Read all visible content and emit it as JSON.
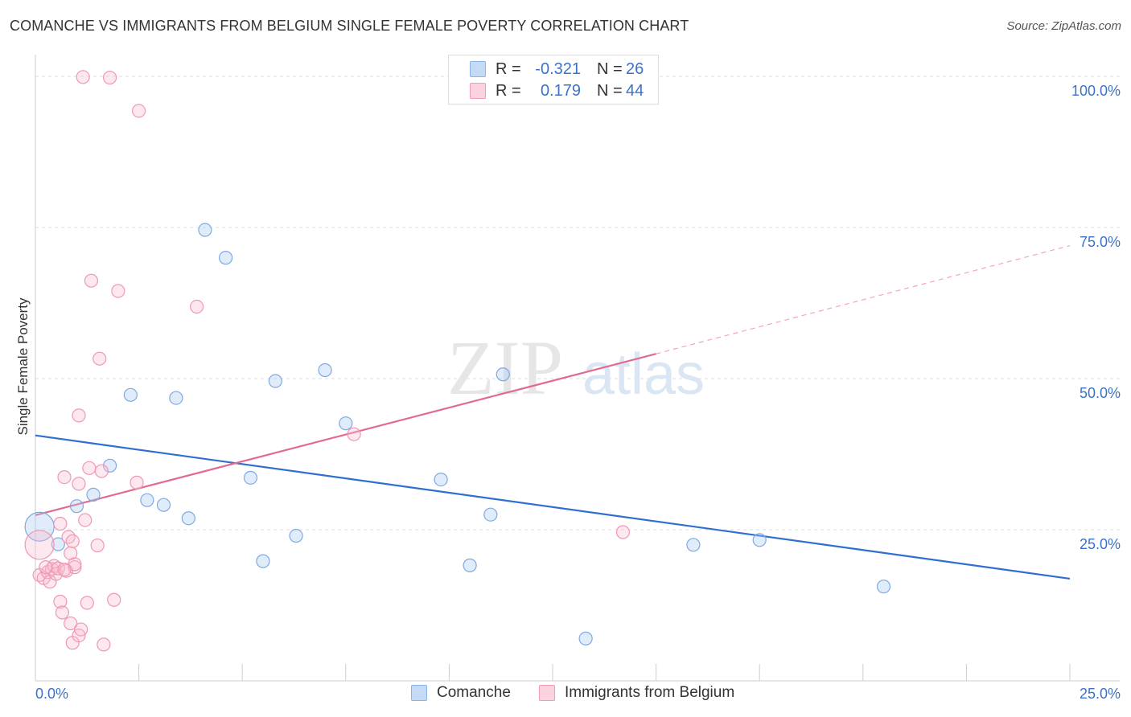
{
  "title": "COMANCHE VS IMMIGRANTS FROM BELGIUM SINGLE FEMALE POVERTY CORRELATION CHART",
  "source": "Source: ZipAtlas.com",
  "watermark": {
    "zip": "ZIP",
    "atlas": "atlas"
  },
  "legend_stats": [
    {
      "r_label": "R =",
      "r_value": "-0.321",
      "n_label": "N =",
      "n_value": "26",
      "color": "#8ab4e8",
      "fill": "#c5daf5"
    },
    {
      "r_label": "R =",
      "r_value": "0.179",
      "n_label": "N =",
      "n_value": "44",
      "color": "#f09cb6",
      "fill": "#fbd3df"
    }
  ],
  "colors": {
    "comanche_stroke": "#7fa9df",
    "comanche_fill": "rgba(170,200,240,0.35)",
    "comanche_line": "#2f6fcf",
    "belgium_stroke": "#ee98b2",
    "belgium_fill": "rgba(248,190,208,0.35)",
    "belgium_line": "#e26a93",
    "grid": "#dddddd",
    "axis_text": "#3b72c9"
  },
  "chart_data": {
    "type": "scatter",
    "title": "COMANCHE VS IMMIGRANTS FROM BELGIUM SINGLE FEMALE POVERTY CORRELATION CHART",
    "xlabel": "",
    "ylabel": "Single Female Poverty",
    "xlim": [
      0,
      25
    ],
    "ylim": [
      0,
      102
    ],
    "x_tick_labels": [
      {
        "value": 0,
        "label": "0.0%"
      },
      {
        "value": 25,
        "label": "25.0%"
      }
    ],
    "y_tick_labels": [
      {
        "value": 25,
        "label": "25.0%"
      },
      {
        "value": 50,
        "label": "50.0%"
      },
      {
        "value": 75,
        "label": "75.0%"
      },
      {
        "value": 100,
        "label": "100.0%"
      }
    ],
    "grid": true,
    "legend": [
      "Comanche",
      "Immigrants from Belgium"
    ],
    "series": [
      {
        "name": "Comanche",
        "points": [
          [
            0.1,
            25.5,
            "large"
          ],
          [
            1.0,
            28.9
          ],
          [
            1.4,
            30.8
          ],
          [
            1.8,
            35.6
          ],
          [
            2.3,
            47.3
          ],
          [
            2.7,
            29.9
          ],
          [
            3.1,
            29.1
          ],
          [
            3.4,
            46.8
          ],
          [
            3.7,
            26.9
          ],
          [
            4.1,
            74.6
          ],
          [
            4.6,
            70.0
          ],
          [
            5.2,
            33.6
          ],
          [
            5.5,
            19.8
          ],
          [
            5.8,
            49.6
          ],
          [
            6.3,
            24.0
          ],
          [
            7.0,
            51.4
          ],
          [
            7.5,
            42.6
          ],
          [
            9.8,
            33.3
          ],
          [
            10.5,
            19.1
          ],
          [
            11.0,
            27.5
          ],
          [
            11.3,
            50.7
          ],
          [
            13.3,
            7.0
          ],
          [
            15.9,
            22.5
          ],
          [
            17.5,
            23.3
          ],
          [
            20.5,
            15.6
          ],
          [
            0.55,
            22.6
          ]
        ],
        "trend": {
          "x": [
            0,
            25
          ],
          "y": [
            40.6,
            16.9
          ]
        }
      },
      {
        "name": "Immigrants from Belgium",
        "points": [
          [
            0.1,
            22.5,
            "large"
          ],
          [
            0.1,
            17.5
          ],
          [
            0.2,
            17.0
          ],
          [
            0.3,
            18.0
          ],
          [
            0.35,
            16.4
          ],
          [
            0.4,
            18.5
          ],
          [
            0.45,
            19.0
          ],
          [
            0.5,
            17.7
          ],
          [
            0.55,
            18.6
          ],
          [
            0.6,
            26.0
          ],
          [
            0.6,
            13.1
          ],
          [
            0.65,
            11.3
          ],
          [
            0.7,
            33.7
          ],
          [
            0.75,
            18.2
          ],
          [
            0.8,
            23.8
          ],
          [
            0.85,
            21.1
          ],
          [
            0.85,
            9.5
          ],
          [
            0.9,
            23.1
          ],
          [
            0.9,
            6.3
          ],
          [
            0.95,
            18.8
          ],
          [
            1.05,
            7.5
          ],
          [
            1.05,
            43.9
          ],
          [
            1.05,
            32.6
          ],
          [
            1.1,
            8.5
          ],
          [
            1.2,
            26.6
          ],
          [
            1.25,
            12.9
          ],
          [
            1.3,
            35.2
          ],
          [
            1.35,
            66.2
          ],
          [
            1.5,
            22.4
          ],
          [
            1.55,
            53.3
          ],
          [
            1.6,
            34.7
          ],
          [
            1.65,
            6.0
          ],
          [
            1.8,
            99.8
          ],
          [
            1.9,
            13.4
          ],
          [
            2.0,
            64.5
          ],
          [
            2.45,
            32.8
          ],
          [
            2.5,
            94.3
          ],
          [
            3.9,
            61.9
          ],
          [
            7.7,
            40.8
          ],
          [
            14.2,
            24.6
          ],
          [
            1.15,
            99.9
          ],
          [
            0.25,
            18.8
          ],
          [
            0.95,
            19.3
          ],
          [
            0.7,
            18.4
          ]
        ],
        "trend": {
          "x": [
            0,
            15
          ],
          "y": [
            27.4,
            54.1
          ]
        },
        "trend_dashed": {
          "x": [
            15,
            25
          ],
          "y": [
            54.1,
            72.0
          ]
        }
      }
    ]
  }
}
